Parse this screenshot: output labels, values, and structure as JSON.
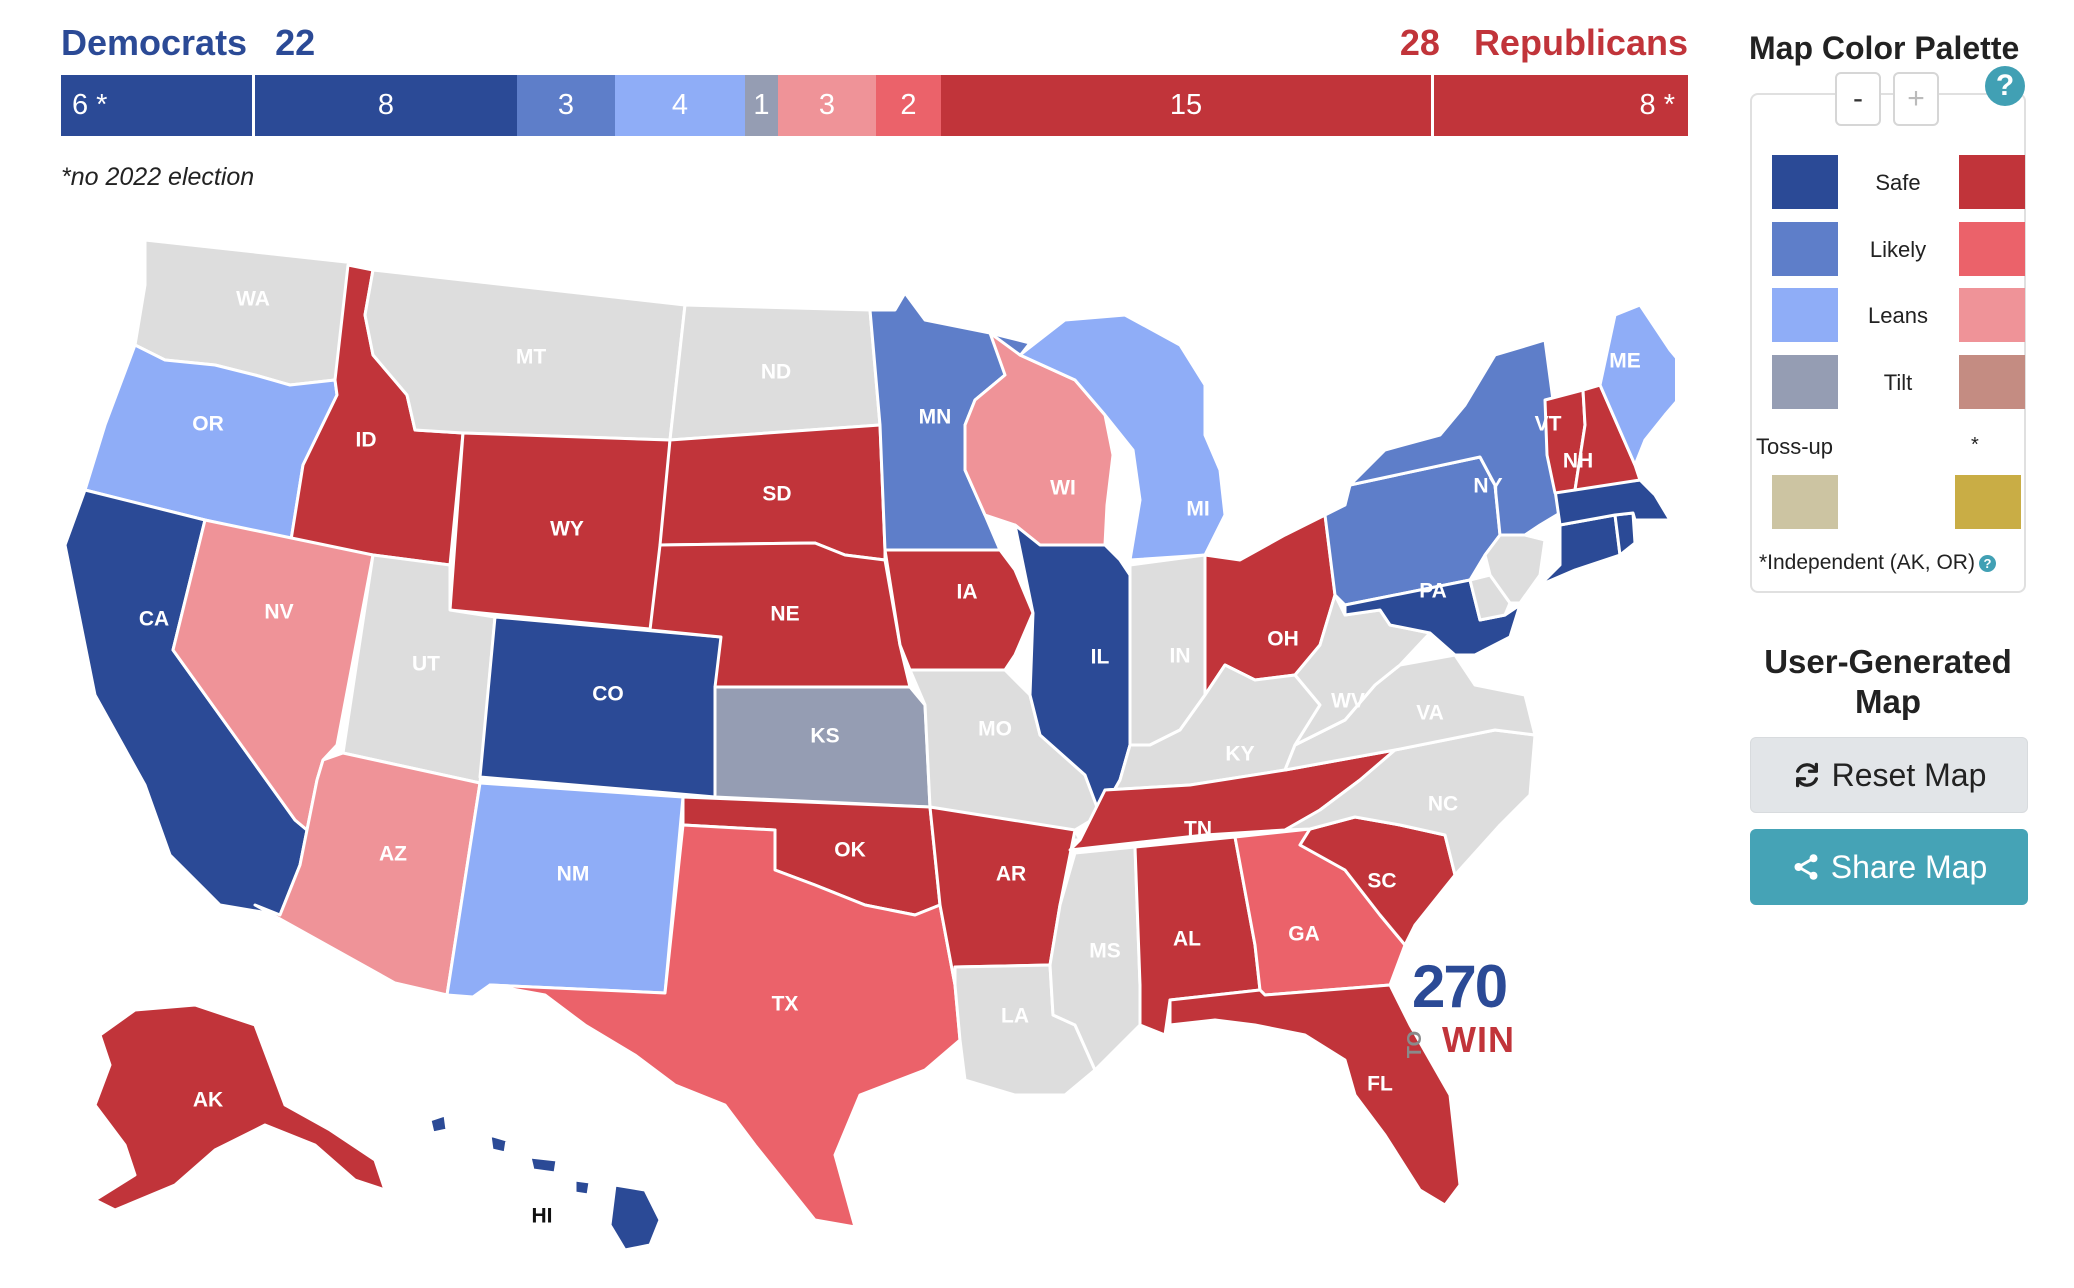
{
  "header": {
    "dem_label": "Democrats",
    "dem_count": "22",
    "rep_count": "28",
    "rep_label": "Republicans"
  },
  "seat_bar": [
    {
      "label": "6 *",
      "rating": "safe-d-noelection",
      "color": "#2b4a96",
      "seats": 6
    },
    {
      "label": "8",
      "rating": "safe-d",
      "color": "#2b4a96",
      "seats": 8
    },
    {
      "label": "3",
      "rating": "likely-d",
      "color": "#5e7ec9",
      "seats": 3
    },
    {
      "label": "4",
      "rating": "leans-d",
      "color": "#8fadf7",
      "seats": 4
    },
    {
      "label": "1",
      "rating": "tilt-d",
      "color": "#959db3",
      "seats": 1
    },
    {
      "label": "3",
      "rating": "leans-r",
      "color": "#ef9398",
      "seats": 3
    },
    {
      "label": "2",
      "rating": "likely-r",
      "color": "#eb626a",
      "seats": 2
    },
    {
      "label": "15",
      "rating": "safe-r",
      "color": "#c1343a",
      "seats": 15
    },
    {
      "label": "8 *",
      "rating": "safe-r-noelection",
      "color": "#c1343a",
      "seats": 8
    }
  ],
  "footnote": "*no 2022 election",
  "map": {
    "states": [
      {
        "abbr": "WA",
        "color": "#dddddd"
      },
      {
        "abbr": "OR",
        "color": "#8fadf7"
      },
      {
        "abbr": "CA",
        "color": "#2b4a96"
      },
      {
        "abbr": "ID",
        "color": "#c1343a"
      },
      {
        "abbr": "NV",
        "color": "#ef9398"
      },
      {
        "abbr": "MT",
        "color": "#dddddd"
      },
      {
        "abbr": "WY",
        "color": "#c1343a"
      },
      {
        "abbr": "UT",
        "color": "#dddddd"
      },
      {
        "abbr": "AZ",
        "color": "#ef9398"
      },
      {
        "abbr": "CO",
        "color": "#2b4a96"
      },
      {
        "abbr": "NM",
        "color": "#8fadf7"
      },
      {
        "abbr": "ND",
        "color": "#dddddd"
      },
      {
        "abbr": "SD",
        "color": "#c1343a"
      },
      {
        "abbr": "NE",
        "color": "#c1343a"
      },
      {
        "abbr": "KS",
        "color": "#959db3"
      },
      {
        "abbr": "OK",
        "color": "#c1343a"
      },
      {
        "abbr": "TX",
        "color": "#eb626a"
      },
      {
        "abbr": "MN",
        "color": "#5e7ec9"
      },
      {
        "abbr": "IA",
        "color": "#c1343a"
      },
      {
        "abbr": "MO",
        "color": "#dddddd"
      },
      {
        "abbr": "AR",
        "color": "#c1343a"
      },
      {
        "abbr": "LA",
        "color": "#dddddd"
      },
      {
        "abbr": "WI",
        "color": "#ef9398"
      },
      {
        "abbr": "IL",
        "color": "#2b4a96"
      },
      {
        "abbr": "MI",
        "color": "#8fadf7"
      },
      {
        "abbr": "IN",
        "color": "#dddddd"
      },
      {
        "abbr": "OH",
        "color": "#c1343a"
      },
      {
        "abbr": "KY",
        "color": "#dddddd"
      },
      {
        "abbr": "TN",
        "color": "#c1343a"
      },
      {
        "abbr": "MS",
        "color": "#dddddd"
      },
      {
        "abbr": "AL",
        "color": "#c1343a"
      },
      {
        "abbr": "GA",
        "color": "#eb626a"
      },
      {
        "abbr": "FL",
        "color": "#c1343a"
      },
      {
        "abbr": "SC",
        "color": "#c1343a"
      },
      {
        "abbr": "NC",
        "color": "#dddddd"
      },
      {
        "abbr": "VA",
        "color": "#dddddd"
      },
      {
        "abbr": "WV",
        "color": "#dddddd"
      },
      {
        "abbr": "PA",
        "color": "#5e7ec9"
      },
      {
        "abbr": "NY",
        "color": "#5e7ec9"
      },
      {
        "abbr": "MD",
        "color": "#2b4a96"
      },
      {
        "abbr": "DE",
        "color": "#dddddd"
      },
      {
        "abbr": "NJ",
        "color": "#dddddd"
      },
      {
        "abbr": "CT",
        "color": "#2b4a96"
      },
      {
        "abbr": "RI",
        "color": "#2b4a96"
      },
      {
        "abbr": "MA",
        "color": "#2b4a96"
      },
      {
        "abbr": "VT",
        "color": "#c1343a"
      },
      {
        "abbr": "NH",
        "color": "#c1343a"
      },
      {
        "abbr": "ME",
        "color": "#8fadf7"
      },
      {
        "abbr": "AK",
        "color": "#c1343a"
      },
      {
        "abbr": "HI",
        "color": "#2b4a96"
      }
    ],
    "labels": {
      "WA": "WA",
      "OR": "OR",
      "CA": "CA",
      "ID": "ID",
      "NV": "NV",
      "MT": "MT",
      "WY": "WY",
      "UT": "UT",
      "AZ": "AZ",
      "CO": "CO",
      "NM": "NM",
      "ND": "ND",
      "SD": "SD",
      "NE": "NE",
      "KS": "KS",
      "OK": "OK",
      "TX": "TX",
      "MN": "MN",
      "IA": "IA",
      "MO": "MO",
      "AR": "AR",
      "LA": "LA",
      "WI": "WI",
      "IL": "IL",
      "MI": "MI",
      "IN": "IN",
      "OH": "OH",
      "KY": "KY",
      "TN": "TN",
      "MS": "MS",
      "AL": "AL",
      "GA": "GA",
      "FL": "FL",
      "SC": "SC",
      "NC": "NC",
      "VA": "VA",
      "WV": "WV",
      "PA": "PA",
      "NY": "NY",
      "VT": "VT",
      "NH": "NH",
      "ME": "ME",
      "AK": "AK",
      "HI": "HI"
    }
  },
  "logo": {
    "number": "270",
    "to": "TO",
    "win": "WIN"
  },
  "palette": {
    "title": "Map Color Palette",
    "zoom_out": "-",
    "zoom_in": "+",
    "help": "?",
    "rows": [
      {
        "label": "Safe",
        "dem_color": "#2b4a96",
        "rep_color": "#c1343a"
      },
      {
        "label": "Likely",
        "dem_color": "#5e7ec9",
        "rep_color": "#eb626a"
      },
      {
        "label": "Leans",
        "dem_color": "#8fadf7",
        "rep_color": "#ef9398"
      },
      {
        "label": "Tilt",
        "dem_color": "#959db3",
        "rep_color": "#c48c82"
      }
    ],
    "tossup_label": "Toss-up",
    "tossup_color": "#ccc4a2",
    "independent_label": "*",
    "independent_color": "#c9ad45",
    "independent_note": "*Independent (AK, OR)"
  },
  "user_map": {
    "title": "User-Generated Map",
    "reset_label": "Reset Map",
    "share_label": "Share Map"
  }
}
